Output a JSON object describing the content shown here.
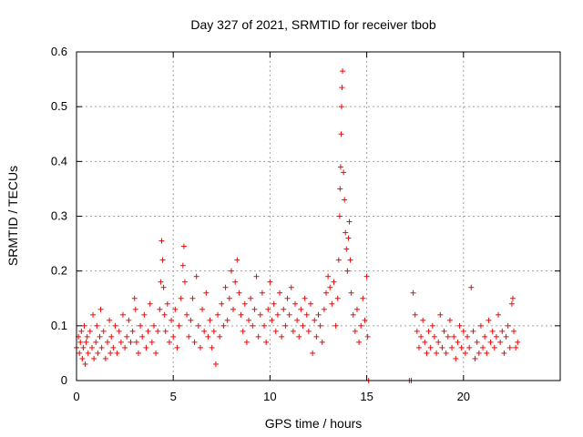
{
  "chart_data": {
    "type": "scatter",
    "title": "Day 327 of 2021, SRMTID for receiver tbob",
    "xlabel": "GPS time / hours",
    "ylabel": "SRMTID / TECUs",
    "xlim": [
      0,
      25
    ],
    "ylim": [
      0,
      0.6
    ],
    "xticks": [
      0,
      5,
      10,
      15,
      20
    ],
    "xtick_labels": [
      "0",
      "5",
      "10",
      "15",
      "20"
    ],
    "yticks": [
      0,
      0.1,
      0.2,
      0.3,
      0.4,
      0.5,
      0.6
    ],
    "ytick_labels": [
      "0",
      "0.1",
      "0.2",
      "0.3",
      "0.4",
      "0.5",
      "0.6"
    ],
    "grid": true,
    "marker": "plus",
    "color": "#ff0000",
    "series": [
      {
        "name": "SRMTID",
        "points": [
          [
            0.0,
            0.06
          ],
          [
            0.1,
            0.08
          ],
          [
            0.15,
            0.05
          ],
          [
            0.2,
            0.07
          ],
          [
            0.25,
            0.09
          ],
          [
            0.3,
            0.04
          ],
          [
            0.35,
            0.06
          ],
          [
            0.4,
            0.1
          ],
          [
            0.45,
            0.03
          ],
          [
            0.5,
            0.07
          ],
          [
            0.55,
            0.08
          ],
          [
            0.6,
            0.05
          ],
          [
            0.7,
            0.09
          ],
          [
            0.8,
            0.06
          ],
          [
            0.85,
            0.12
          ],
          [
            0.9,
            0.04
          ],
          [
            1.0,
            0.07
          ],
          [
            1.05,
            0.1
          ],
          [
            1.1,
            0.05
          ],
          [
            1.2,
            0.08
          ],
          [
            1.25,
            0.13
          ],
          [
            1.3,
            0.06
          ],
          [
            1.4,
            0.09
          ],
          [
            1.5,
            0.04
          ],
          [
            1.6,
            0.07
          ],
          [
            1.7,
            0.11
          ],
          [
            1.75,
            0.05
          ],
          [
            1.8,
            0.08
          ],
          [
            1.9,
            0.06
          ],
          [
            2.0,
            0.1
          ],
          [
            2.1,
            0.05
          ],
          [
            2.2,
            0.09
          ],
          [
            2.3,
            0.07
          ],
          [
            2.4,
            0.12
          ],
          [
            2.5,
            0.06
          ],
          [
            2.6,
            0.08
          ],
          [
            2.7,
            0.11
          ],
          [
            2.8,
            0.07
          ],
          [
            2.9,
            0.09
          ],
          [
            3.0,
            0.15
          ],
          [
            3.05,
            0.13
          ],
          [
            3.1,
            0.07
          ],
          [
            3.2,
            0.05
          ],
          [
            3.3,
            0.1
          ],
          [
            3.4,
            0.08
          ],
          [
            3.5,
            0.12
          ],
          [
            3.6,
            0.06
          ],
          [
            3.7,
            0.09
          ],
          [
            3.8,
            0.14
          ],
          [
            3.9,
            0.07
          ],
          [
            4.0,
            0.1
          ],
          [
            4.1,
            0.05
          ],
          [
            4.2,
            0.09
          ],
          [
            4.3,
            0.13
          ],
          [
            4.35,
            0.18
          ],
          [
            4.4,
            0.255
          ],
          [
            4.45,
            0.22
          ],
          [
            4.5,
            0.17
          ],
          [
            4.55,
            0.12
          ],
          [
            4.6,
            0.09
          ],
          [
            4.7,
            0.14
          ],
          [
            4.8,
            0.07
          ],
          [
            4.9,
            0.11
          ],
          [
            5.0,
            0.08
          ],
          [
            5.1,
            0.13
          ],
          [
            5.2,
            0.06
          ],
          [
            5.3,
            0.1
          ],
          [
            5.4,
            0.15
          ],
          [
            5.5,
            0.21
          ],
          [
            5.55,
            0.245
          ],
          [
            5.6,
            0.18
          ],
          [
            5.7,
            0.12
          ],
          [
            5.8,
            0.08
          ],
          [
            5.9,
            0.11
          ],
          [
            6.0,
            0.15
          ],
          [
            6.1,
            0.07
          ],
          [
            6.2,
            0.19
          ],
          [
            6.3,
            0.1
          ],
          [
            6.4,
            0.06
          ],
          [
            6.5,
            0.13
          ],
          [
            6.6,
            0.09
          ],
          [
            6.7,
            0.16
          ],
          [
            6.8,
            0.08
          ],
          [
            6.9,
            0.11
          ],
          [
            7.0,
            0.06
          ],
          [
            7.1,
            0.09
          ],
          [
            7.2,
            0.03
          ],
          [
            7.3,
            0.12
          ],
          [
            7.4,
            0.08
          ],
          [
            7.5,
            0.14
          ],
          [
            7.6,
            0.1
          ],
          [
            7.7,
            0.17
          ],
          [
            7.8,
            0.11
          ],
          [
            7.9,
            0.15
          ],
          [
            8.0,
            0.2
          ],
          [
            8.1,
            0.13
          ],
          [
            8.2,
            0.18
          ],
          [
            8.3,
            0.22
          ],
          [
            8.4,
            0.16
          ],
          [
            8.5,
            0.12
          ],
          [
            8.6,
            0.09
          ],
          [
            8.7,
            0.14
          ],
          [
            8.8,
            0.07
          ],
          [
            8.9,
            0.11
          ],
          [
            9.0,
            0.15
          ],
          [
            9.1,
            0.1
          ],
          [
            9.2,
            0.13
          ],
          [
            9.3,
            0.19
          ],
          [
            9.4,
            0.08
          ],
          [
            9.5,
            0.12
          ],
          [
            9.6,
            0.16
          ],
          [
            9.7,
            0.1
          ],
          [
            9.8,
            0.07
          ],
          [
            9.9,
            0.13
          ],
          [
            10.0,
            0.18
          ],
          [
            10.1,
            0.11
          ],
          [
            10.2,
            0.14
          ],
          [
            10.3,
            0.09
          ],
          [
            10.4,
            0.12
          ],
          [
            10.5,
            0.16
          ],
          [
            10.6,
            0.08
          ],
          [
            10.7,
            0.13
          ],
          [
            10.8,
            0.1
          ],
          [
            10.9,
            0.15
          ],
          [
            11.0,
            0.12
          ],
          [
            11.1,
            0.17
          ],
          [
            11.2,
            0.09
          ],
          [
            11.3,
            0.14
          ],
          [
            11.4,
            0.11
          ],
          [
            11.5,
            0.08
          ],
          [
            11.6,
            0.13
          ],
          [
            11.7,
            0.1
          ],
          [
            11.8,
            0.15
          ],
          [
            11.9,
            0.12
          ],
          [
            12.0,
            0.09
          ],
          [
            12.1,
            0.14
          ],
          [
            12.2,
            0.05
          ],
          [
            12.3,
            0.11
          ],
          [
            12.4,
            0.08
          ],
          [
            12.5,
            0.12
          ],
          [
            12.6,
            0.1
          ],
          [
            12.7,
            0.07
          ],
          [
            12.8,
            0.13
          ],
          [
            12.9,
            0.16
          ],
          [
            13.0,
            0.19
          ],
          [
            13.1,
            0.17
          ],
          [
            13.2,
            0.14
          ],
          [
            13.3,
            0.18
          ],
          [
            13.4,
            0.1
          ],
          [
            13.5,
            0.15
          ],
          [
            13.55,
            0.22
          ],
          [
            13.6,
            0.3
          ],
          [
            13.62,
            0.35
          ],
          [
            13.65,
            0.39
          ],
          [
            13.68,
            0.45
          ],
          [
            13.7,
            0.5
          ],
          [
            13.72,
            0.535
          ],
          [
            13.75,
            0.565
          ],
          [
            13.8,
            0.38
          ],
          [
            13.85,
            0.33
          ],
          [
            13.9,
            0.27
          ],
          [
            13.95,
            0.24
          ],
          [
            14.0,
            0.2
          ],
          [
            14.05,
            0.26
          ],
          [
            14.1,
            0.29
          ],
          [
            14.15,
            0.22
          ],
          [
            14.2,
            0.16
          ],
          [
            14.3,
            0.12
          ],
          [
            14.4,
            0.09
          ],
          [
            14.5,
            0.13
          ],
          [
            14.6,
            0.07
          ],
          [
            14.7,
            0.1
          ],
          [
            14.8,
            0.15
          ],
          [
            14.9,
            0.11
          ],
          [
            15.0,
            0.19
          ],
          [
            15.05,
            0.08
          ],
          [
            15.1,
            0.0
          ],
          [
            17.2,
            0.0
          ],
          [
            17.3,
            0.0
          ],
          [
            17.4,
            0.16
          ],
          [
            17.5,
            0.12
          ],
          [
            17.6,
            0.09
          ],
          [
            17.7,
            0.06
          ],
          [
            17.8,
            0.08
          ],
          [
            17.9,
            0.11
          ],
          [
            18.0,
            0.07
          ],
          [
            18.1,
            0.05
          ],
          [
            18.2,
            0.09
          ],
          [
            18.3,
            0.06
          ],
          [
            18.4,
            0.1
          ],
          [
            18.5,
            0.08
          ],
          [
            18.6,
            0.05
          ],
          [
            18.7,
            0.07
          ],
          [
            18.8,
            0.12
          ],
          [
            18.9,
            0.06
          ],
          [
            19.0,
            0.09
          ],
          [
            19.1,
            0.05
          ],
          [
            19.2,
            0.08
          ],
          [
            19.3,
            0.11
          ],
          [
            19.4,
            0.06
          ],
          [
            19.5,
            0.08
          ],
          [
            19.6,
            0.04
          ],
          [
            19.7,
            0.07
          ],
          [
            19.8,
            0.1
          ],
          [
            19.9,
            0.06
          ],
          [
            20.0,
            0.09
          ],
          [
            20.1,
            0.05
          ],
          [
            20.2,
            0.08
          ],
          [
            20.3,
            0.06
          ],
          [
            20.4,
            0.17
          ],
          [
            20.5,
            0.09
          ],
          [
            20.6,
            0.04
          ],
          [
            20.7,
            0.07
          ],
          [
            20.8,
            0.05
          ],
          [
            20.9,
            0.1
          ],
          [
            21.0,
            0.06
          ],
          [
            21.1,
            0.08
          ],
          [
            21.2,
            0.05
          ],
          [
            21.3,
            0.11
          ],
          [
            21.4,
            0.07
          ],
          [
            21.5,
            0.09
          ],
          [
            21.6,
            0.06
          ],
          [
            21.7,
            0.08
          ],
          [
            21.8,
            0.12
          ],
          [
            21.9,
            0.07
          ],
          [
            22.0,
            0.09
          ],
          [
            22.1,
            0.05
          ],
          [
            22.2,
            0.08
          ],
          [
            22.3,
            0.1
          ],
          [
            22.4,
            0.06
          ],
          [
            22.5,
            0.14
          ],
          [
            22.55,
            0.15
          ],
          [
            22.6,
            0.09
          ],
          [
            22.7,
            0.06
          ],
          [
            22.8,
            0.07
          ]
        ]
      }
    ]
  }
}
